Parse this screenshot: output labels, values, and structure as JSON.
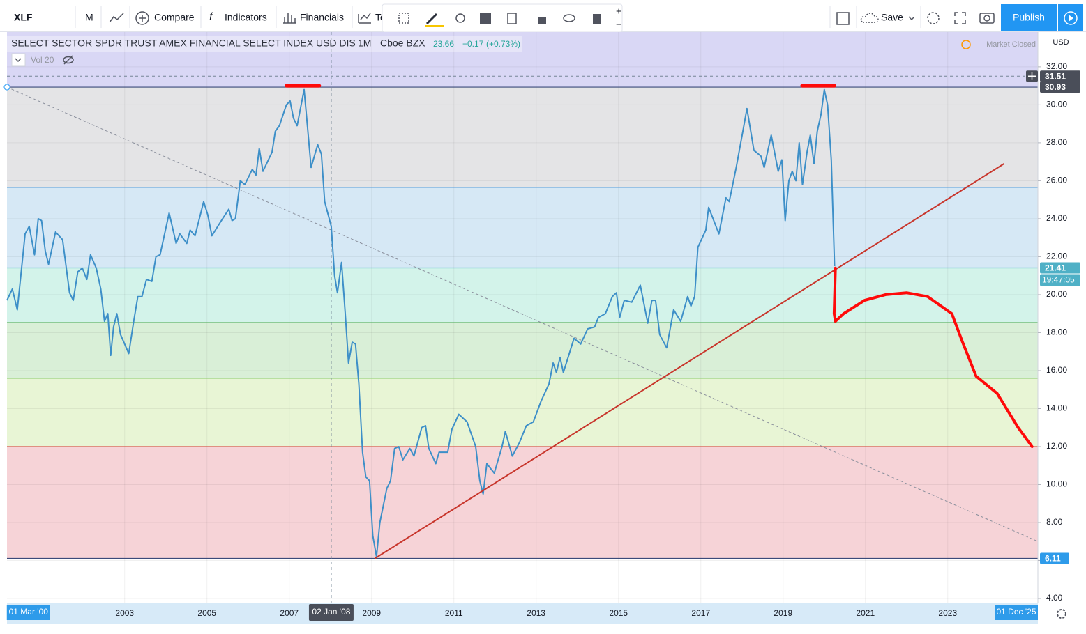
{
  "toolbar": {
    "symbol": "XLF",
    "interval": "M",
    "compare": "Compare",
    "indicators": "Indicators",
    "financials": "Financials",
    "templates": "Te",
    "save": "Save",
    "publish": "Publish"
  },
  "legend": {
    "title": "SELECT SECTOR SPDR TRUST AMEX FINANCIAL SELECT INDEX USD DIS",
    "interval": "1M",
    "exchange": "Cboe BZX",
    "last": 23.66,
    "change": "+0.17",
    "change_pct": "(+0.73%)",
    "volume": "Vol 20",
    "status": "Market Closed",
    "currency": "USD"
  },
  "chart_data": {
    "type": "line",
    "x": [
      2000.14,
      2000.27,
      2000.39,
      2000.58,
      2000.68,
      2000.81,
      2000.9,
      2000.98,
      2001.07,
      2001.15,
      2001.32,
      2001.49,
      2001.66,
      2001.75,
      2001.86,
      2001.97,
      2002.08,
      2002.17,
      2002.31,
      2002.42,
      2002.51,
      2002.59,
      2002.66,
      2002.73,
      2002.81,
      2002.9,
      2003.1,
      2003.22,
      2003.32,
      2003.42,
      2003.53,
      2003.66,
      2003.76,
      2003.86,
      2004.08,
      2004.25,
      2004.34,
      2004.51,
      2004.59,
      2004.71,
      2004.92,
      2005.02,
      2005.12,
      2005.32,
      2005.53,
      2005.61,
      2005.69,
      2005.81,
      2005.92,
      2006.1,
      2006.19,
      2006.27,
      2006.36,
      2006.58,
      2006.66,
      2006.76,
      2006.93,
      2007.02,
      2007.1,
      2007.19,
      2007.36,
      2007.44,
      2007.53,
      2007.69,
      2007.78,
      2007.86,
      2008.02,
      2008.1,
      2008.17,
      2008.27,
      2008.36,
      2008.44,
      2008.53,
      2008.61,
      2008.69,
      2008.78,
      2008.86,
      2008.95,
      2009.03,
      2009.12,
      2009.2,
      2009.37,
      2009.46,
      2009.56,
      2009.66,
      2009.76,
      2009.93,
      2010.03,
      2010.22,
      2010.31,
      2010.39,
      2010.56,
      2010.64,
      2010.85,
      2010.95,
      2011.12,
      2011.32,
      2011.53,
      2011.63,
      2011.71,
      2011.8,
      2011.98,
      2012.17,
      2012.25,
      2012.42,
      2012.59,
      2012.76,
      2012.93,
      2013.12,
      2013.31,
      2013.41,
      2013.49,
      2013.58,
      2013.66,
      2013.92,
      2014.08,
      2014.25,
      2014.42,
      2014.51,
      2014.68,
      2014.85,
      2014.95,
      2015.03,
      2015.14,
      2015.32,
      2015.53,
      2015.71,
      2015.81,
      2015.9,
      2016.0,
      2016.17,
      2016.34,
      2016.51,
      2016.68,
      2016.76,
      2016.85,
      2016.93,
      2017.12,
      2017.19,
      2017.44,
      2017.61,
      2017.69,
      2017.86,
      2018.03,
      2018.12,
      2018.29,
      2018.46,
      2018.54,
      2018.71,
      2018.88,
      2018.97,
      2019.05,
      2019.14,
      2019.22,
      2019.31,
      2019.39,
      2019.47,
      2019.58,
      2019.66,
      2019.75,
      2019.83,
      2019.92,
      2020.0,
      2020.08,
      2020.17,
      2020.25
    ],
    "series": [
      {
        "color": "#3d8fc8",
        "values": [
          19.7,
          20.3,
          19.2,
          23.2,
          23.6,
          22.1,
          24.0,
          23.9,
          22.3,
          21.6,
          23.3,
          22.9,
          20.1,
          19.7,
          21.2,
          21.4,
          20.8,
          22.1,
          21.4,
          20.3,
          18.6,
          19.0,
          16.8,
          18.3,
          19.0,
          17.9,
          16.9,
          18.6,
          19.9,
          19.9,
          20.8,
          20.7,
          22.0,
          22.1,
          24.3,
          22.7,
          23.2,
          22.7,
          23.4,
          23.1,
          24.9,
          24.2,
          23.1,
          23.8,
          24.5,
          23.9,
          24.0,
          26.0,
          25.8,
          26.6,
          26.3,
          27.7,
          26.5,
          27.5,
          28.6,
          28.9,
          30.0,
          30.2,
          29.3,
          28.9,
          30.8,
          28.9,
          26.7,
          27.9,
          27.4,
          24.9,
          23.6,
          21.0,
          20.1,
          21.7,
          19.0,
          16.4,
          17.5,
          17.4,
          15.3,
          11.7,
          10.4,
          10.2,
          7.3,
          6.2,
          8.0,
          9.8,
          10.2,
          11.9,
          12.0,
          11.3,
          11.9,
          11.5,
          13.0,
          13.1,
          11.9,
          11.1,
          11.7,
          11.7,
          12.9,
          13.7,
          13.3,
          12.0,
          10.2,
          9.5,
          11.1,
          10.6,
          12.0,
          12.8,
          11.5,
          12.2,
          13.1,
          13.3,
          14.4,
          15.3,
          16.4,
          15.9,
          16.7,
          15.9,
          17.7,
          17.4,
          18.2,
          18.3,
          18.8,
          19.0,
          19.9,
          20.1,
          18.8,
          19.7,
          19.6,
          20.5,
          18.5,
          19.7,
          19.7,
          17.9,
          17.2,
          19.2,
          18.6,
          19.9,
          19.4,
          19.9,
          22.5,
          23.4,
          24.6,
          23.2,
          25.1,
          24.9,
          26.7,
          28.7,
          29.8,
          27.6,
          27.3,
          26.7,
          28.4,
          26.5,
          27.1,
          23.9,
          26.0,
          26.5,
          26.0,
          28.0,
          25.8,
          27.5,
          28.4,
          26.9,
          28.6,
          29.5,
          30.8,
          30.0,
          27.1,
          21.5
        ]
      }
    ],
    "xlim": [
      2000.14,
      2025.19
    ],
    "ylim": [
      3.78,
      33.83
    ],
    "xticks": [
      2003,
      2005,
      2007,
      2009,
      2011,
      2013,
      2015,
      2017,
      2019,
      2021,
      2023
    ],
    "yticks": [
      {
        "value": 4,
        "label": "4.00"
      },
      {
        "value": 6,
        "label": "6.00"
      },
      {
        "value": 8,
        "label": "8.00"
      },
      {
        "value": 10,
        "label": "10.00"
      },
      {
        "value": 12,
        "label": "12.00"
      },
      {
        "value": 14,
        "label": "14.00"
      },
      {
        "value": 16,
        "label": "16.00"
      },
      {
        "value": 18,
        "label": "18.00"
      },
      {
        "value": 20,
        "label": "20.00"
      },
      {
        "value": 22,
        "label": "22.00"
      },
      {
        "value": 24,
        "label": "24.00"
      },
      {
        "value": 26,
        "label": "26.00"
      },
      {
        "value": 28,
        "label": "28.00"
      },
      {
        "value": 30,
        "label": "30.00"
      },
      {
        "value": 32,
        "label": "32.00"
      }
    ],
    "grid": true,
    "levels": [
      30.93,
      25.65,
      21.41,
      18.53,
      15.6,
      12.0,
      6.11
    ],
    "level_colors": [
      "#3b4a7a",
      "#5b9bd5",
      "#4bb8c4",
      "#63b363",
      "#86c96a",
      "#d9534f",
      "#3b4a7a"
    ],
    "zone_colors": [
      "#d9d7f5",
      "#e4e4e6",
      "#d6e8f5",
      "#d3f3ea",
      "#d9efd7",
      "#e8f5d5",
      "#f6d3d7"
    ],
    "price_labels": [
      {
        "value": 31.51,
        "color": "#4a4e59"
      },
      {
        "value": 30.93,
        "color": "#4a4e59"
      },
      {
        "value": 21.41,
        "color": "#4fb0c6"
      },
      {
        "value": 6.11,
        "color": "#2e9bea"
      }
    ],
    "countdown": "19:47:05",
    "crosshair": {
      "value": 2008.02,
      "label": "02 Jan '08"
    },
    "range_labels": [
      {
        "value": 2000.17,
        "label": "01 Mar '00"
      },
      {
        "value": 2025.92,
        "label": "01 Dec '25"
      }
    ],
    "trend_line": {
      "color": "#c8352b",
      "x": [
        2009.08,
        2024.37
      ],
      "values": [
        6.11,
        26.9
      ]
    },
    "dashed_line": {
      "color": "#8a8f9c",
      "x": [
        2000.14,
        2025.19
      ],
      "values": [
        30.93,
        7.0
      ]
    },
    "forecast": {
      "color": "#ff0a0a",
      "x": [
        2020.27,
        2020.24,
        2020.27,
        2020.47,
        2020.98,
        2021.49,
        2022.0,
        2022.51,
        2023.1,
        2023.36,
        2023.69,
        2024.2,
        2024.71,
        2025.05
      ],
      "values": [
        21.4,
        19.0,
        18.6,
        19.0,
        19.7,
        20.0,
        20.1,
        19.9,
        19.0,
        17.5,
        15.7,
        14.8,
        13.0,
        12.0
      ]
    },
    "top_marks": [
      {
        "color": "#ff0a0a",
        "x": [
          2006.93,
          2007.73
        ],
        "values": [
          31.0,
          31.0
        ]
      },
      {
        "color": "#ff0a0a",
        "x": [
          2019.46,
          2020.25
        ],
        "values": [
          31.0,
          31.0
        ]
      }
    ]
  }
}
